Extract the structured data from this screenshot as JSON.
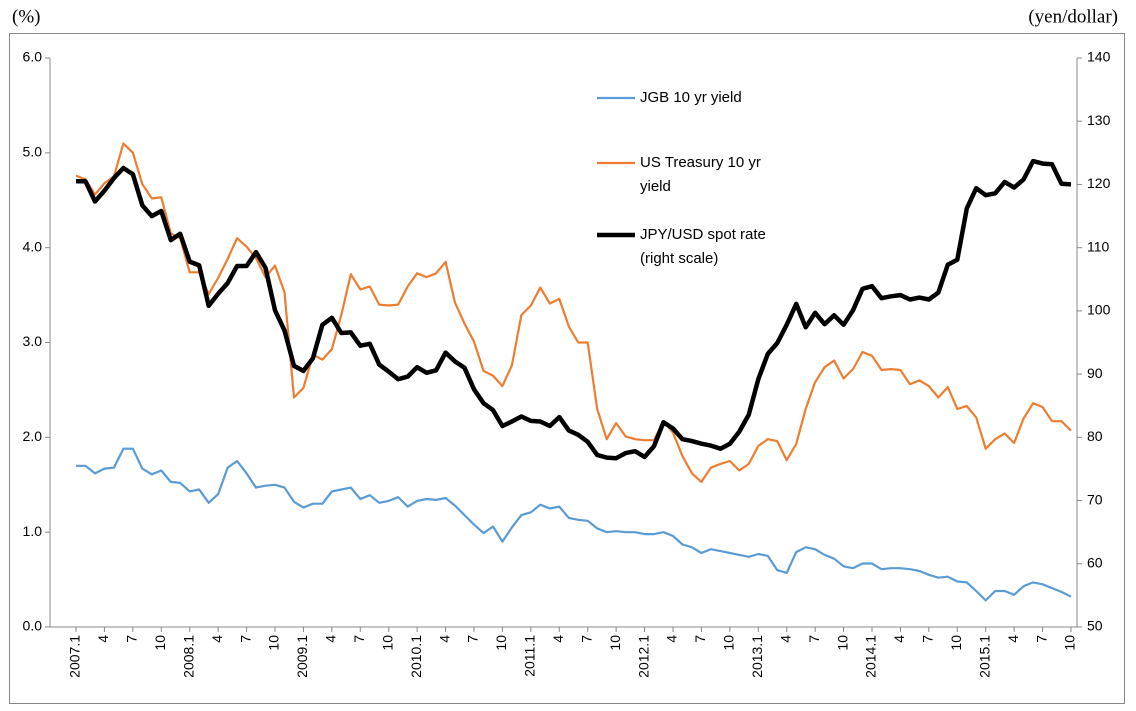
{
  "chart_data": {
    "type": "line",
    "y_label": "(%)",
    "y2_label": "(yen/dollar)",
    "categories": [
      "2007.1",
      null,
      null,
      "4",
      null,
      null,
      "7",
      null,
      null,
      "10",
      null,
      null,
      "2008.1",
      null,
      null,
      "4",
      null,
      null,
      "7",
      null,
      null,
      "10",
      null,
      null,
      "2009.1",
      null,
      null,
      "4",
      null,
      null,
      "7",
      null,
      null,
      "10",
      null,
      null,
      "2010.1",
      null,
      null,
      "4",
      null,
      null,
      "7",
      null,
      null,
      "10",
      null,
      null,
      "2011.1",
      null,
      null,
      "4",
      null,
      null,
      "7",
      null,
      null,
      "10",
      null,
      null,
      "2012.1",
      null,
      null,
      "4",
      null,
      null,
      "7",
      null,
      null,
      "10",
      null,
      null,
      "2013.1",
      null,
      null,
      "4",
      null,
      null,
      "7",
      null,
      null,
      "10",
      null,
      null,
      "2014.1",
      null,
      null,
      "4",
      null,
      null,
      "7",
      null,
      null,
      "10",
      null,
      null,
      "2015.1",
      null,
      null,
      "4",
      null,
      null,
      "7",
      null,
      null,
      "10"
    ],
    "series": [
      {
        "name": "JGB 10 yr yield",
        "color": "#5b9bd5",
        "values": [
          1.7,
          1.7,
          1.62,
          1.67,
          1.68,
          1.88,
          1.88,
          1.67,
          1.61,
          1.65,
          1.53,
          1.52,
          1.43,
          1.45,
          1.31,
          1.4,
          1.68,
          1.75,
          1.62,
          1.47,
          1.49,
          1.5,
          1.47,
          1.32,
          1.26,
          1.3,
          1.3,
          1.43,
          1.45,
          1.47,
          1.35,
          1.39,
          1.31,
          1.33,
          1.37,
          1.27,
          1.33,
          1.35,
          1.34,
          1.36,
          1.28,
          1.18,
          1.08,
          0.99,
          1.06,
          0.9,
          1.05,
          1.18,
          1.21,
          1.29,
          1.25,
          1.27,
          1.15,
          1.13,
          1.12,
          1.04,
          1.0,
          1.01,
          1.0,
          1.0,
          0.98,
          0.98,
          1.0,
          0.96,
          0.87,
          0.84,
          0.78,
          0.82,
          0.8,
          0.78,
          0.76,
          0.74,
          0.77,
          0.75,
          0.6,
          0.57,
          0.79,
          0.84,
          0.82,
          0.76,
          0.72,
          0.64,
          0.62,
          0.67,
          0.67,
          0.61,
          0.62,
          0.62,
          0.61,
          0.59,
          0.55,
          0.52,
          0.53,
          0.48,
          0.47,
          0.38,
          0.28,
          0.38,
          0.38,
          0.34,
          0.43,
          0.47,
          0.45,
          0.41,
          0.37,
          0.32
        ]
      },
      {
        "name": "US Treasury 10 yr yield",
        "color": "#ed7d31",
        "values": [
          4.76,
          4.72,
          4.56,
          4.68,
          4.75,
          5.1,
          5.0,
          4.67,
          4.52,
          4.53,
          4.15,
          4.1,
          3.74,
          3.74,
          3.51,
          3.68,
          3.88,
          4.1,
          4.01,
          3.89,
          3.69,
          3.81,
          3.53,
          2.42,
          2.52,
          2.87,
          2.82,
          2.93,
          3.29,
          3.72,
          3.56,
          3.59,
          3.4,
          3.39,
          3.4,
          3.59,
          3.73,
          3.69,
          3.73,
          3.85,
          3.42,
          3.2,
          3.01,
          2.7,
          2.65,
          2.54,
          2.76,
          3.29,
          3.39,
          3.58,
          3.41,
          3.46,
          3.17,
          3.0,
          3.0,
          2.3,
          1.98,
          2.15,
          2.01,
          1.98,
          1.97,
          1.97,
          2.17,
          2.05,
          1.8,
          1.62,
          1.53,
          1.68,
          1.72,
          1.75,
          1.65,
          1.72,
          1.91,
          1.98,
          1.96,
          1.76,
          1.93,
          2.3,
          2.58,
          2.74,
          2.81,
          2.62,
          2.72,
          2.9,
          2.86,
          2.71,
          2.72,
          2.71,
          2.56,
          2.6,
          2.54,
          2.42,
          2.53,
          2.3,
          2.33,
          2.21,
          1.88,
          1.98,
          2.04,
          1.94,
          2.2,
          2.36,
          2.32,
          2.17,
          2.17,
          2.07
        ]
      },
      {
        "name": "JPY/USD spot rate (right scale)",
        "color": "#000000",
        "axis": "y2",
        "values": [
          120.5,
          120.5,
          117.3,
          119.0,
          121.0,
          122.6,
          121.6,
          116.7,
          115.0,
          115.8,
          111.2,
          112.2,
          107.8,
          107.2,
          100.8,
          102.7,
          104.4,
          107.1,
          107.1,
          109.3,
          106.8,
          100.1,
          96.9,
          91.3,
          90.5,
          92.5,
          97.8,
          98.9,
          96.5,
          96.6,
          94.5,
          94.8,
          91.5,
          90.4,
          89.2,
          89.6,
          91.1,
          90.2,
          90.6,
          93.4,
          92.0,
          91.0,
          87.6,
          85.4,
          84.3,
          81.8,
          82.5,
          83.3,
          82.6,
          82.5,
          81.8,
          83.2,
          81.1,
          80.4,
          79.3,
          77.2,
          76.8,
          76.7,
          77.5,
          77.8,
          76.9,
          78.6,
          82.4,
          81.4,
          79.7,
          79.4,
          79.0,
          78.7,
          78.2,
          79.0,
          80.9,
          83.6,
          89.2,
          93.2,
          94.9,
          97.8,
          101.1,
          97.4,
          99.7,
          97.9,
          99.3,
          97.8,
          100.1,
          103.5,
          103.9,
          102.0,
          102.3,
          102.5,
          101.8,
          102.1,
          101.8,
          102.9,
          107.3,
          108.1,
          116.2,
          119.4,
          118.3,
          118.6,
          120.4,
          119.5,
          120.8,
          123.7,
          123.3,
          123.2,
          120.1,
          120.0
        ]
      }
    ],
    "ylim": [
      0,
      6
    ],
    "yticks": [
      {
        "value": 0,
        "label": "0.0"
      },
      {
        "value": 1,
        "label": "1.0"
      },
      {
        "value": 2,
        "label": "2.0"
      },
      {
        "value": 3,
        "label": "3.0"
      },
      {
        "value": 4,
        "label": "4.0"
      },
      {
        "value": 5,
        "label": "5.0"
      },
      {
        "value": 6,
        "label": "6.0"
      }
    ],
    "y2lim": [
      50,
      140
    ],
    "y2ticks": [
      50,
      60,
      70,
      80,
      90,
      100,
      110,
      120,
      130,
      140
    ]
  }
}
